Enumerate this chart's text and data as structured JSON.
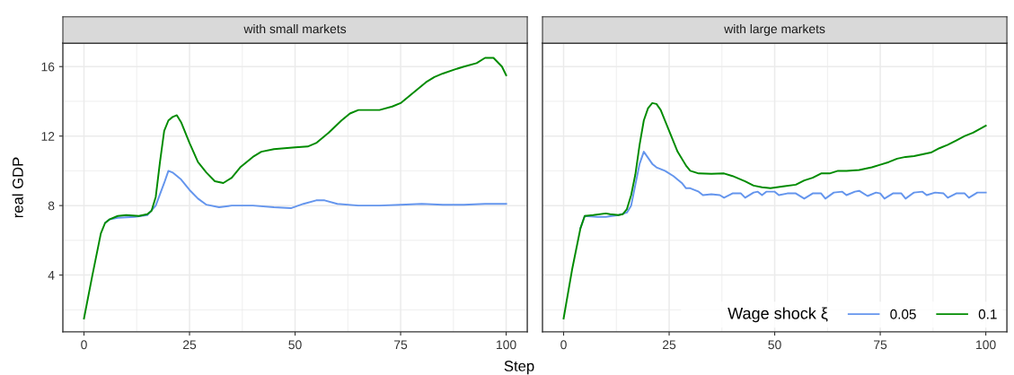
{
  "chart_data": [
    {
      "type": "line",
      "title": "with small markets",
      "ylabel": "real GDP",
      "xlim": [
        -5,
        105
      ],
      "ylim": [
        0.73,
        17.35
      ],
      "xticks": [
        0,
        25,
        50,
        75,
        100
      ],
      "yticks": [
        4,
        8,
        12,
        16
      ],
      "grid": true,
      "line_style": "solid",
      "series": [
        {
          "color": "#6495ed",
          "x": [
            5,
            6,
            8,
            12,
            15,
            17,
            19,
            20,
            21,
            23,
            25,
            27,
            29,
            32,
            35,
            40,
            45,
            49,
            52,
            55,
            57,
            60,
            65,
            70,
            75,
            80,
            85,
            90,
            95,
            100
          ],
          "values": [
            7.0,
            7.2,
            7.3,
            7.35,
            7.45,
            8.0,
            9.3,
            10.0,
            9.9,
            9.5,
            8.9,
            8.4,
            8.05,
            7.9,
            8.0,
            8.0,
            7.9,
            7.85,
            8.1,
            8.3,
            8.3,
            8.1,
            8.0,
            8.0,
            8.05,
            8.1,
            8.05,
            8.05,
            8.1,
            8.1
          ]
        },
        {
          "color": "#008b00",
          "x": [
            0,
            2,
            4,
            5,
            6,
            8,
            10,
            13,
            15,
            16,
            17,
            18,
            19,
            20,
            21,
            22,
            23,
            25,
            27,
            29,
            31,
            33,
            35,
            37,
            40,
            42,
            45,
            50,
            53,
            55,
            58,
            61,
            63,
            65,
            70,
            73,
            75,
            77,
            79,
            81,
            83,
            85,
            88,
            90,
            93,
            95,
            97,
            99,
            100
          ],
          "values": [
            1.5,
            4.0,
            6.4,
            7.0,
            7.2,
            7.4,
            7.45,
            7.4,
            7.5,
            7.7,
            8.5,
            10.5,
            12.3,
            12.9,
            13.1,
            13.2,
            12.8,
            11.6,
            10.5,
            9.9,
            9.4,
            9.3,
            9.6,
            10.2,
            10.8,
            11.1,
            11.25,
            11.35,
            11.4,
            11.6,
            12.2,
            12.9,
            13.3,
            13.5,
            13.5,
            13.7,
            13.9,
            14.3,
            14.7,
            15.1,
            15.4,
            15.6,
            15.85,
            16.0,
            16.2,
            16.5,
            16.5,
            16.0,
            15.5
          ]
        }
      ]
    },
    {
      "type": "line",
      "title": "with large markets",
      "xlabel": "Step",
      "xlim": [
        -5,
        105
      ],
      "ylim": [
        0.73,
        17.35
      ],
      "xticks": [
        0,
        25,
        50,
        75,
        100
      ],
      "yticks": [
        4,
        8,
        12,
        16
      ],
      "grid": true,
      "line_style": "solid",
      "tick_labels": "x",
      "legend": "bottom right",
      "legend_title": "Wage shock ξ",
      "series": [
        {
          "name": "0.05",
          "color": "#6495ed",
          "x": [
            4,
            5,
            8,
            10,
            13,
            15,
            16,
            17,
            18,
            19,
            20,
            21,
            22,
            24,
            26,
            28,
            29,
            30,
            32,
            33,
            35,
            37,
            38,
            40,
            42,
            43,
            45,
            46,
            47,
            48,
            50,
            51,
            53,
            55,
            57,
            59,
            61,
            62,
            64,
            66,
            67,
            69,
            70,
            72,
            74,
            75,
            76,
            78,
            80,
            81,
            83,
            85,
            86,
            88,
            90,
            91,
            93,
            95,
            96,
            98,
            100
          ],
          "values": [
            6.7,
            7.4,
            7.35,
            7.35,
            7.45,
            7.6,
            8.0,
            9.2,
            10.4,
            11.1,
            10.75,
            10.4,
            10.2,
            10.0,
            9.7,
            9.3,
            9.0,
            9.0,
            8.8,
            8.6,
            8.65,
            8.6,
            8.45,
            8.7,
            8.7,
            8.45,
            8.75,
            8.8,
            8.6,
            8.8,
            8.8,
            8.6,
            8.7,
            8.7,
            8.4,
            8.7,
            8.7,
            8.4,
            8.75,
            8.8,
            8.6,
            8.8,
            8.85,
            8.55,
            8.75,
            8.7,
            8.4,
            8.7,
            8.7,
            8.4,
            8.75,
            8.8,
            8.6,
            8.75,
            8.7,
            8.45,
            8.7,
            8.7,
            8.45,
            8.75,
            8.75
          ]
        },
        {
          "name": "0.1",
          "color": "#008b00",
          "x": [
            0,
            2,
            4,
            5,
            7,
            10,
            11,
            13,
            14,
            15,
            16,
            17,
            18,
            19,
            20,
            21,
            22,
            23,
            25,
            27,
            29,
            30,
            32,
            35,
            38,
            40,
            43,
            45,
            47,
            49,
            52,
            55,
            57,
            59,
            61,
            63,
            65,
            67,
            70,
            73,
            75,
            77,
            79,
            81,
            83,
            85,
            87,
            89,
            91,
            93,
            95,
            97,
            100
          ],
          "values": [
            1.5,
            4.3,
            6.7,
            7.4,
            7.45,
            7.55,
            7.5,
            7.45,
            7.5,
            7.8,
            8.6,
            9.8,
            11.5,
            12.9,
            13.6,
            13.9,
            13.85,
            13.5,
            12.3,
            11.1,
            10.3,
            10.0,
            9.85,
            9.83,
            9.85,
            9.7,
            9.4,
            9.15,
            9.05,
            9.0,
            9.1,
            9.2,
            9.45,
            9.6,
            9.85,
            9.85,
            10.0,
            10.0,
            10.05,
            10.2,
            10.35,
            10.5,
            10.7,
            10.8,
            10.85,
            10.95,
            11.05,
            11.3,
            11.5,
            11.75,
            12.0,
            12.2,
            12.6
          ]
        }
      ]
    }
  ]
}
